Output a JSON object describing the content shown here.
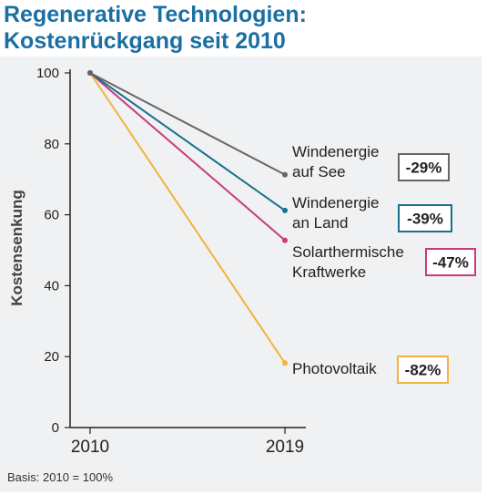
{
  "title_line1": "Regenerative Technologien:",
  "title_line2": "Kostenrückgang seit 2010",
  "note": "Basis: 2010 = 100%",
  "chart_data": {
    "type": "line",
    "x": [
      "2010",
      "2019"
    ],
    "ylabel": "Kostensenkung",
    "ylim": [
      0,
      100
    ],
    "yticks": [
      0,
      20,
      40,
      60,
      80,
      100
    ],
    "grid": false,
    "series": [
      {
        "name_lines": [
          "Windenergie",
          "auf See"
        ],
        "values": [
          100,
          71.3
        ],
        "change": "-29%",
        "color": "#666666"
      },
      {
        "name_lines": [
          "Windenergie",
          "an Land"
        ],
        "values": [
          100,
          61.2
        ],
        "change": "-39%",
        "color": "#1a6f8f"
      },
      {
        "name_lines": [
          "Solarthermische",
          "Kraftwerke"
        ],
        "values": [
          100,
          52.8
        ],
        "change": "-47%",
        "color": "#c83c7a"
      },
      {
        "name_lines": [
          "Photovoltaik"
        ],
        "values": [
          100,
          18.2
        ],
        "change": "-82%",
        "color": "#f3b33d"
      }
    ]
  }
}
